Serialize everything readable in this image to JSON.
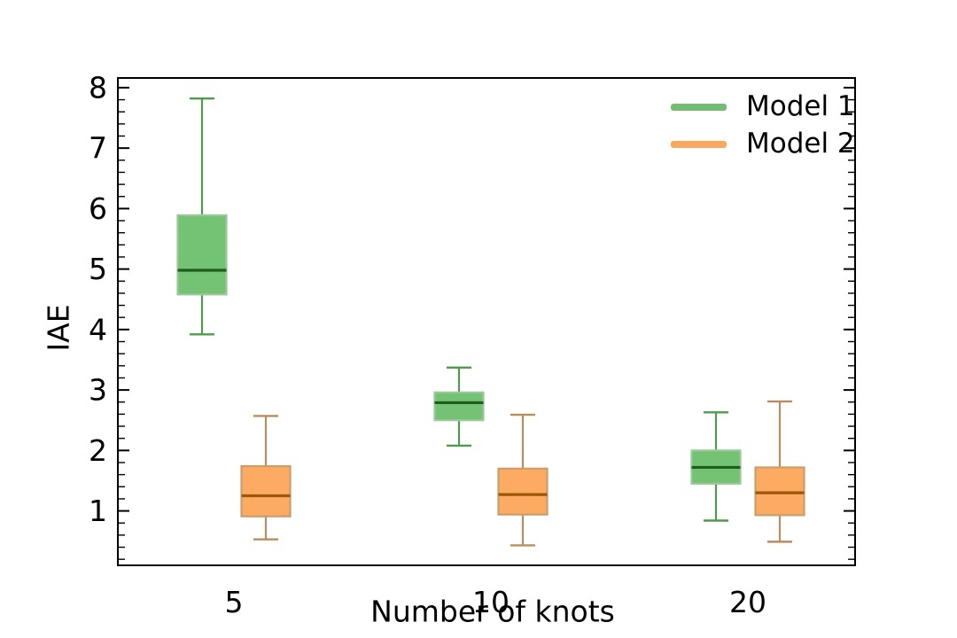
{
  "chart_data": {
    "type": "boxplot",
    "title": "",
    "xlabel": "Number of knots",
    "ylabel": "IAE",
    "categories": [
      "5",
      "10",
      "20"
    ],
    "ylim": [
      0.1,
      8.16
    ],
    "yticks": [
      1,
      2,
      3,
      4,
      5,
      6,
      7,
      8
    ],
    "y_minor_tick_step": 0.2,
    "grid": false,
    "legend": {
      "position": "upper right",
      "entries": [
        {
          "label": "Model 1",
          "color": "#72bd72"
        },
        {
          "label": "Model 2",
          "color": "#fca75e"
        }
      ]
    },
    "series": [
      {
        "name": "Model 1",
        "fill_color": "#74c274",
        "edge_color": "#9cc79c",
        "whisker_color": "#4e9b4e",
        "median_color": "#1d5e1d",
        "boxes": [
          {
            "category": "5",
            "whislo": 3.92,
            "q1": 4.58,
            "med": 4.98,
            "q3": 5.89,
            "whishi": 7.82
          },
          {
            "category": "10",
            "whislo": 2.08,
            "q1": 2.5,
            "med": 2.79,
            "q3": 2.96,
            "whishi": 3.37
          },
          {
            "category": "20",
            "whislo": 0.84,
            "q1": 1.45,
            "med": 1.72,
            "q3": 2.0,
            "whishi": 2.63
          }
        ]
      },
      {
        "name": "Model 2",
        "fill_color": "#fdaa62",
        "edge_color": "#c99e6c",
        "whisker_color": "#bb8d5e",
        "median_color": "#9c5708",
        "boxes": [
          {
            "category": "5",
            "whislo": 0.53,
            "q1": 0.91,
            "med": 1.25,
            "q3": 1.74,
            "whishi": 2.57
          },
          {
            "category": "10",
            "whislo": 0.43,
            "q1": 0.94,
            "med": 1.27,
            "q3": 1.7,
            "whishi": 2.59
          },
          {
            "category": "20",
            "whislo": 0.49,
            "q1": 0.93,
            "med": 1.3,
            "q3": 1.72,
            "whishi": 2.81
          }
        ]
      }
    ]
  }
}
